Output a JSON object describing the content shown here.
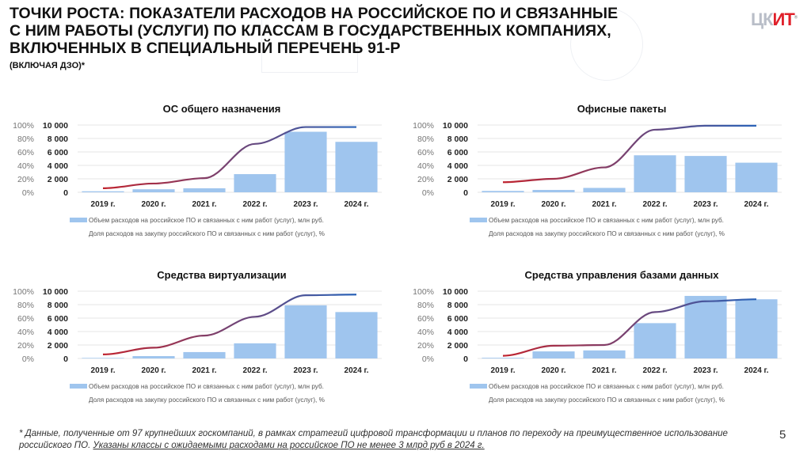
{
  "header": {
    "title_lines": [
      "ТОЧКИ РОСТА: ПОКАЗАТЕЛИ РАСХОДОВ НА РОССИЙСКОЕ ПО И СВЯЗАННЫЕ",
      "С НИМ РАБОТЫ (УСЛУГИ) ПО КЛАССАМ В ГОСУДАРСТВЕННЫХ КОМПАНИЯХ,",
      "ВКЛЮЧЕННЫХ В СПЕЦИАЛЬНЫЙ ПЕРЕЧЕНЬ 91-Р"
    ],
    "subtitle": "(ВКЛЮЧАЯ ДЗО)*",
    "logo_part1": "ЦК",
    "logo_part2": "ИТ"
  },
  "colors": {
    "bar": "#9fc5ee",
    "line_start": "#c0232e",
    "line_end": "#2a63b8",
    "grid": "#e4e4e4"
  },
  "chart_data": [
    {
      "type": "bar+line",
      "title": "ОС общего назначения",
      "categories": [
        "2019 г.",
        "2020 г.",
        "2021 г.",
        "2022 г.",
        "2023 г.",
        "2024 г."
      ],
      "y_ticks": [
        "0",
        "2 000",
        "4 000",
        "6 000",
        "8 000",
        "10 000"
      ],
      "y2_ticks": [
        "0%",
        "20%",
        "40%",
        "60%",
        "80%",
        "100%"
      ],
      "ylim": [
        0,
        10000
      ],
      "y2lim": [
        0,
        100
      ],
      "grid": true,
      "legend": "bottom",
      "series": [
        {
          "name": "Объем расходов на российское ПО и связанных с ним работ (услуг), млн руб.",
          "type": "bar",
          "values": [
            150,
            450,
            600,
            2700,
            9000,
            7500
          ]
        },
        {
          "name": "Доля расходов на закупку российского ПО и связанных с ним работ (услуг), %",
          "type": "line",
          "values": [
            6,
            13,
            21,
            72,
            97,
            97
          ]
        }
      ]
    },
    {
      "type": "bar+line",
      "title": "Офисные пакеты",
      "categories": [
        "2019 г.",
        "2020 г.",
        "2021 г.",
        "2022 г.",
        "2023 г.",
        "2024 г."
      ],
      "y_ticks": [
        "0",
        "2 000",
        "4 000",
        "6 000",
        "8 000",
        "10 000"
      ],
      "y2_ticks": [
        "0%",
        "20%",
        "40%",
        "60%",
        "80%",
        "100%"
      ],
      "ylim": [
        0,
        10000
      ],
      "y2lim": [
        0,
        100
      ],
      "grid": true,
      "legend": "bottom",
      "series": [
        {
          "name": "Объем расходов на российское ПО и связанных с ним работ (услуг), млн руб.",
          "type": "bar",
          "values": [
            200,
            350,
            650,
            5500,
            5400,
            4400
          ]
        },
        {
          "name": "Доля расходов на закупку российского ПО и связанных с ним работ (услуг), %",
          "type": "line",
          "values": [
            15,
            20,
            37,
            93,
            99,
            99
          ]
        }
      ]
    },
    {
      "type": "bar+line",
      "title": "Средства виртуализации",
      "categories": [
        "2019 г.",
        "2020 г.",
        "2021 г.",
        "2022 г.",
        "2023 г.",
        "2024 г."
      ],
      "y_ticks": [
        "0",
        "2 000",
        "4 000",
        "6 000",
        "8 000",
        "10 000"
      ],
      "y2_ticks": [
        "0%",
        "20%",
        "40%",
        "60%",
        "80%",
        "100%"
      ],
      "ylim": [
        0,
        10000
      ],
      "y2lim": [
        0,
        100
      ],
      "grid": true,
      "legend": "bottom",
      "series": [
        {
          "name": "Объем расходов на российское ПО и связанных с ним работ (услуг), млн руб.",
          "type": "bar",
          "values": [
            80,
            350,
            950,
            2250,
            7900,
            6900
          ]
        },
        {
          "name": "Доля расходов на закупку российского ПО и связанных с ним работ (услуг), %",
          "type": "line",
          "values": [
            6,
            16,
            34,
            62,
            94,
            95
          ]
        }
      ]
    },
    {
      "type": "bar+line",
      "title": "Средства управления базами данных",
      "categories": [
        "2019 г.",
        "2020 г.",
        "2021 г.",
        "2022 г.",
        "2023 г.",
        "2024 г."
      ],
      "y_ticks": [
        "0",
        "2 000",
        "4 000",
        "6 000",
        "8 000",
        "10 000"
      ],
      "y2_ticks": [
        "0%",
        "20%",
        "40%",
        "60%",
        "80%",
        "100%"
      ],
      "ylim": [
        0,
        10000
      ],
      "y2lim": [
        0,
        100
      ],
      "grid": true,
      "legend": "bottom",
      "series": [
        {
          "name": "Объем расходов на российское ПО и связанных с ним работ (услуг), млн руб.",
          "type": "bar",
          "values": [
            100,
            1050,
            1200,
            5250,
            9300,
            8800
          ]
        },
        {
          "name": "Доля расходов на закупку российского ПО и связанных с ним работ (услуг), %",
          "type": "line",
          "values": [
            4,
            19,
            20,
            69,
            85,
            88
          ]
        }
      ]
    }
  ],
  "footer": {
    "note_plain": "* Данные, полученные от 97 крупнейших госкомпаний, в рамках стратегий цифровой трансформации и планов по переходу на преимущественное использование российского ПО. ",
    "note_underlined": "Указаны классы с ожидаемыми расходами на российское ПО не менее 3 млрд руб в 2024 г.",
    "page_number": "5"
  }
}
